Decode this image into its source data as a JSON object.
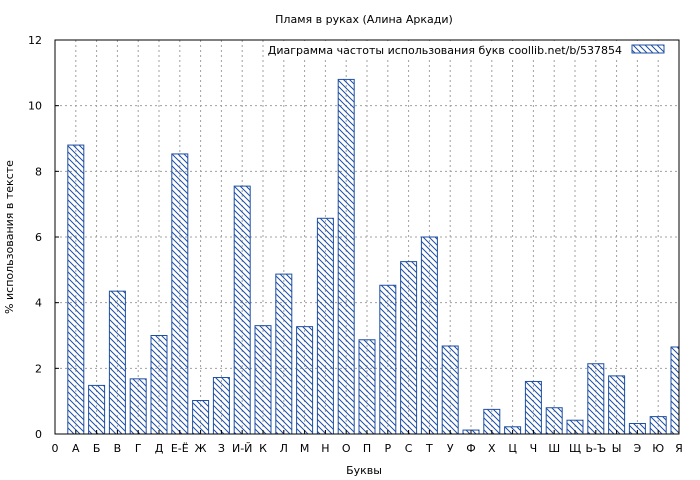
{
  "chart_data": {
    "type": "bar",
    "title": "Пламя в руках (Алина Аркади)",
    "xlabel": "Буквы",
    "ylabel": "% использования в тексте",
    "legend": {
      "label": "Диаграмма частоты использования букв  coollib.net/b/537854",
      "placement": "top-right"
    },
    "ylim": [
      0,
      12
    ],
    "yticks": [
      "0",
      "2",
      "4",
      "6",
      "8",
      "10",
      "12"
    ],
    "grid": true,
    "bar_color": "#1f4fa3",
    "categories": [
      "0",
      "А",
      "Б",
      "В",
      "Г",
      "Д",
      "Е-Ё",
      "Ж",
      "З",
      "И-Й",
      "К",
      "Л",
      "М",
      "Н",
      "О",
      "П",
      "Р",
      "С",
      "Т",
      "У",
      "Ф",
      "Х",
      "Ц",
      "Ч",
      "Ш",
      "Щ",
      "Ь-Ъ",
      "Ы",
      "Э",
      "Ю",
      "Я"
    ],
    "values": [
      0,
      8.8,
      1.48,
      4.35,
      1.68,
      3.0,
      8.53,
      1.02,
      1.72,
      7.55,
      3.3,
      4.87,
      3.27,
      6.57,
      10.8,
      2.87,
      4.53,
      5.25,
      6.0,
      2.68,
      0.12,
      0.75,
      0.22,
      1.6,
      0.8,
      0.42,
      2.14,
      1.77,
      0.32,
      0.53,
      2.65
    ]
  }
}
